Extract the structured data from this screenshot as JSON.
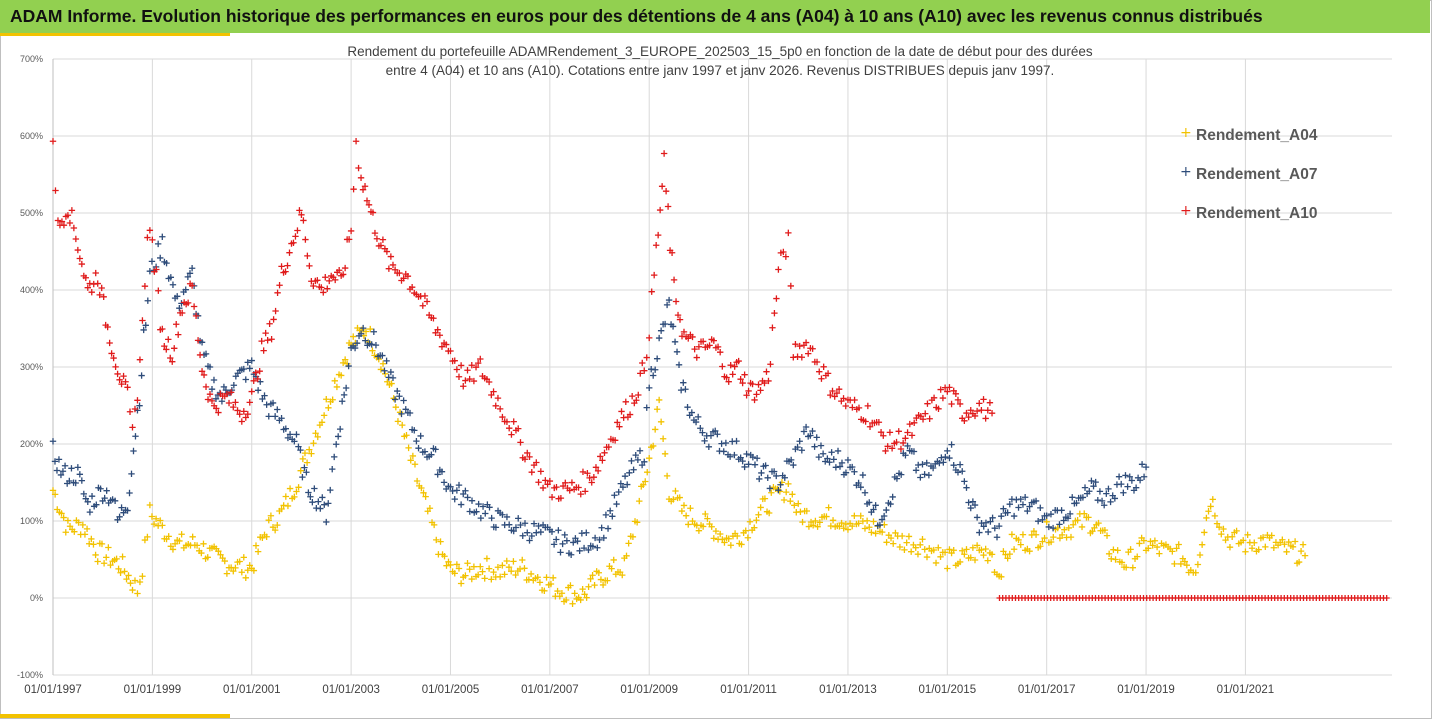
{
  "header": {
    "title": "ADAM Informe. Evolution historique des performances en euros pour des détentions de 4 ans (A04) à 10 ans (A10) avec les revenus connus distribués"
  },
  "colors": {
    "A04": "#f2c200",
    "A07": "#2e4c7a",
    "A10": "#e01b1b",
    "banner": "#92d050"
  },
  "chart_data": {
    "type": "scatter",
    "subtitle_lines": [
      "Rendement du portefeuille ADAMRendement_3_EUROPE_202503_15_5p0  en fonction de la date de début pour des durées",
      "entre 4 (A04) et 10 ans (A10). Cotations entre janv 1997 et janv 2026. Revenus DISTRIBUES depuis janv 1997."
    ],
    "xlabel": "",
    "ylabel": "",
    "x_range": [
      1997.0,
      2023.95
    ],
    "ylim": [
      -100,
      700
    ],
    "y_ticks": [
      -100,
      0,
      100,
      200,
      300,
      400,
      500,
      600,
      700
    ],
    "y_tick_labels": [
      "-100%",
      "0%",
      "100%",
      "200%",
      "300%",
      "400%",
      "500%",
      "600%",
      "700%"
    ],
    "x_ticks": [
      1997,
      1999,
      2001,
      2003,
      2005,
      2007,
      2009,
      2011,
      2013,
      2015,
      2017,
      2019,
      2021
    ],
    "x_tick_labels": [
      "01/01/1997",
      "01/01/1999",
      "01/01/2001",
      "01/01/2003",
      "01/01/2005",
      "01/01/2007",
      "01/01/2009",
      "01/01/2011",
      "01/01/2013",
      "01/01/2015",
      "01/01/2017",
      "01/01/2019",
      "01/01/2021"
    ],
    "legend_position": "right",
    "marker": "+",
    "series": [
      {
        "name": "Rendement_A04",
        "color": "#f2c200",
        "x": [
          1997.0,
          1997.3,
          1997.6,
          1997.9,
          1998.2,
          1998.4,
          1998.6,
          1998.7,
          1998.8,
          1998.95,
          1999.2,
          1999.5,
          1999.9,
          2000.2,
          2000.5,
          2000.8,
          2001.0,
          2001.3,
          2001.6,
          2001.9,
          2002.2,
          2002.5,
          2002.8,
          2003.0,
          2003.3,
          2003.6,
          2003.9,
          2004.2,
          2004.5,
          2004.8,
          2005.0,
          2005.3,
          2005.6,
          2006.0,
          2006.4,
          2006.8,
          2007.2,
          2007.5,
          2007.7,
          2007.9,
          2008.2,
          2008.5,
          2008.8,
          2009.0,
          2009.2,
          2009.4,
          2009.7,
          2010.0,
          2010.3,
          2010.6,
          2010.9,
          2011.2,
          2011.5,
          2011.8,
          2012.0,
          2012.3,
          2012.7,
          2013.0,
          2013.3,
          2013.6,
          2014.0,
          2014.5,
          2015.0,
          2015.3,
          2015.6,
          2015.9,
          2016.0,
          2016.3,
          2016.7,
          2017.0,
          2017.4,
          2017.8,
          2018.0,
          2018.3,
          2018.6,
          2019.0,
          2019.4,
          2019.7,
          2019.9,
          2020.0,
          2020.3,
          2020.6,
          2021.0,
          2021.4,
          2021.7,
          2022.0,
          2022.2
        ],
        "y": [
          140,
          90,
          95,
          60,
          50,
          40,
          20,
          10,
          40,
          110,
          90,
          70,
          70,
          55,
          45,
          40,
          40,
          90,
          110,
          150,
          200,
          250,
          300,
          330,
          350,
          310,
          250,
          180,
          120,
          60,
          35,
          30,
          40,
          35,
          40,
          25,
          10,
          5,
          5,
          20,
          35,
          40,
          120,
          180,
          250,
          140,
          110,
          100,
          90,
          75,
          85,
          110,
          130,
          145,
          110,
          105,
          105,
          100,
          95,
          90,
          75,
          70,
          50,
          50,
          60,
          60,
          30,
          70,
          75,
          85,
          90,
          100,
          95,
          60,
          45,
          70,
          60,
          55,
          40,
          40,
          130,
          80,
          70,
          75,
          65,
          60,
          55
        ]
      },
      {
        "name": "Rendement_A07",
        "color": "#2e4c7a",
        "x": [
          1997.0,
          1997.2,
          1997.5,
          1997.7,
          1998.0,
          1998.2,
          1998.3,
          1998.5,
          1998.7,
          1998.95,
          1999.2,
          1999.5,
          1999.8,
          2000.0,
          2000.2,
          2000.4,
          2000.6,
          2000.8,
          2001.0,
          2001.3,
          2001.6,
          2001.9,
          2002.1,
          2002.3,
          2002.5,
          2002.7,
          2002.9,
          2003.0,
          2003.2,
          2003.5,
          2003.8,
          2004.1,
          2004.4,
          2004.7,
          2005.0,
          2005.3,
          2005.7,
          2006.0,
          2006.5,
          2007.0,
          2007.3,
          2007.6,
          2008.0,
          2008.3,
          2008.6,
          2008.9,
          2009.0,
          2009.2,
          2009.4,
          2009.6,
          2009.9,
          2010.2,
          2010.5,
          2010.8,
          2011.0,
          2011.3,
          2011.6,
          2011.9,
          2012.2,
          2012.5,
          2012.8,
          2013.0,
          2013.3,
          2013.6,
          2013.9,
          2014.2,
          2014.5,
          2014.8,
          2015.0,
          2015.3,
          2015.6,
          2016.0,
          2016.3,
          2016.7,
          2017.0,
          2017.3,
          2017.6,
          2017.9,
          2018.2,
          2018.5,
          2018.8,
          2019.0
        ],
        "y": [
          190,
          160,
          160,
          120,
          140,
          130,
          100,
          125,
          240,
          420,
          460,
          380,
          420,
          320,
          280,
          260,
          280,
          290,
          300,
          250,
          230,
          200,
          150,
          130,
          110,
          200,
          280,
          320,
          350,
          330,
          280,
          240,
          200,
          180,
          140,
          130,
          110,
          100,
          90,
          80,
          70,
          70,
          80,
          120,
          160,
          190,
          280,
          330,
          380,
          290,
          230,
          210,
          200,
          190,
          180,
          160,
          150,
          180,
          220,
          180,
          180,
          170,
          150,
          100,
          140,
          190,
          160,
          170,
          200,
          160,
          100,
          90,
          120,
          120,
          100,
          110,
          120,
          140,
          130,
          150,
          150,
          170
        ]
      },
      {
        "name": "Rendement_A10",
        "color": "#e01b1b",
        "x": [
          1997.0,
          1997.1,
          1997.3,
          1997.5,
          1997.7,
          1997.9,
          1998.1,
          1998.3,
          1998.5,
          1998.6,
          1998.7,
          1998.8,
          1998.9,
          1999.0,
          1999.2,
          1999.4,
          1999.6,
          1999.8,
          2000.0,
          2000.2,
          2000.5,
          2000.8,
          2001.0,
          2001.2,
          2001.4,
          2001.6,
          2001.8,
          2002.0,
          2002.2,
          2002.4,
          2002.6,
          2002.8,
          2003.0,
          2003.1,
          2003.2,
          2003.4,
          2003.6,
          2003.8,
          2004.1,
          2004.4,
          2004.7,
          2005.0,
          2005.3,
          2005.6,
          2006.0,
          2006.5,
          2007.0,
          2007.4,
          2007.8,
          2008.1,
          2008.4,
          2008.7,
          2008.9,
          2009.0,
          2009.1,
          2009.3,
          2009.5,
          2009.7,
          2010.0,
          2010.3,
          2010.6,
          2010.8,
          2011.0,
          2011.2,
          2011.4,
          2011.6,
          2011.7,
          2011.8,
          2011.9,
          2012.2,
          2012.6,
          2013.0,
          2013.4,
          2013.8,
          2014.2,
          2014.6,
          2015.0,
          2015.3,
          2015.6,
          2015.9
        ],
        "y": [
          600,
          480,
          510,
          460,
          400,
          420,
          350,
          300,
          260,
          210,
          270,
          350,
          480,
          460,
          340,
          320,
          380,
          400,
          300,
          250,
          260,
          240,
          260,
          320,
          350,
          420,
          460,
          500,
          420,
          400,
          420,
          410,
          480,
          590,
          550,
          500,
          460,
          430,
          420,
          390,
          350,
          320,
          280,
          300,
          250,
          190,
          140,
          140,
          155,
          190,
          230,
          260,
          300,
          350,
          420,
          560,
          400,
          340,
          320,
          330,
          290,
          300,
          270,
          270,
          290,
          420,
          450,
          460,
          320,
          330,
          280,
          250,
          240,
          200,
          210,
          240,
          270,
          240,
          250,
          240
        ]
      },
      {
        "name": "Rendement_A10_zero_line",
        "color": "#e01b1b",
        "x_range": [
          2016.05,
          2023.85
        ],
        "y_constant": 0
      }
    ]
  }
}
